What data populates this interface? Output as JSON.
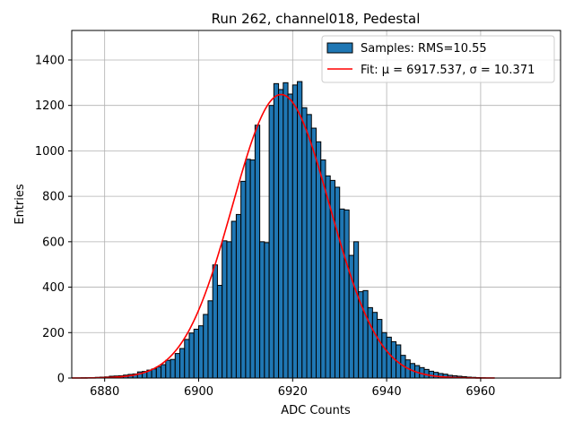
{
  "chart_data": {
    "type": "bar",
    "title": "Run 262, channel018, Pedestal",
    "xlabel": "ADC Counts",
    "ylabel": "Entries",
    "xlim": [
      6873,
      6977
    ],
    "ylim": [
      0,
      1530
    ],
    "xticks": [
      6880,
      6900,
      6920,
      6940,
      6960
    ],
    "yticks": [
      0,
      200,
      400,
      600,
      800,
      1000,
      1200,
      1400
    ],
    "grid": true,
    "legend_position": "top-right",
    "bin_width": 1,
    "bins": {
      "x_start": [
        6875,
        6876,
        6877,
        6878,
        6879,
        6880,
        6881,
        6882,
        6883,
        6884,
        6885,
        6886,
        6887,
        6888,
        6889,
        6890,
        6891,
        6892,
        6893,
        6894,
        6895,
        6896,
        6897,
        6898,
        6899,
        6900,
        6901,
        6902,
        6903,
        6904,
        6905,
        6906,
        6907,
        6908,
        6909,
        6910,
        6911,
        6912,
        6913,
        6914,
        6915,
        6916,
        6917,
        6918,
        6919,
        6920,
        6921,
        6922,
        6923,
        6924,
        6925,
        6926,
        6927,
        6928,
        6929,
        6930,
        6931,
        6932,
        6933,
        6934,
        6935,
        6936,
        6937,
        6938,
        6939,
        6940,
        6941,
        6942,
        6943,
        6944,
        6945,
        6946,
        6947,
        6948,
        6949,
        6950,
        6951,
        6952,
        6953,
        6954,
        6955,
        6956,
        6957,
        6958,
        6959,
        6960
      ],
      "counts": [
        1,
        1,
        2,
        3,
        4,
        5,
        8,
        9,
        10,
        13,
        16,
        18,
        27,
        29,
        35,
        40,
        49,
        59,
        78,
        82,
        108,
        130,
        170,
        198,
        215,
        230,
        280,
        340,
        498,
        408,
        604,
        600,
        690,
        720,
        866,
        963,
        960,
        1113,
        600,
        596,
        1200,
        1296,
        1270,
        1300,
        1250,
        1290,
        1305,
        1190,
        1160,
        1100,
        1040,
        960,
        890,
        870,
        840,
        744,
        740,
        540,
        600,
        380,
        385,
        310,
        289,
        258,
        200,
        180,
        160,
        146,
        100,
        80,
        64,
        55,
        46,
        38,
        30,
        25,
        20,
        17,
        12,
        10,
        8,
        6,
        4,
        3,
        2,
        1
      ]
    },
    "series": [
      {
        "name": "Samples: RMS=10.55",
        "kind": "histogram",
        "color": "#1f77b4",
        "edge_color": "#000000"
      },
      {
        "name": "Fit: μ = 6917.537, σ = 10.371",
        "kind": "gaussian-fit",
        "color": "#ff0000",
        "mu": 6917.537,
        "sigma": 10.371,
        "amplitude": 1248,
        "x_range": [
          6873,
          6963
        ]
      }
    ]
  }
}
